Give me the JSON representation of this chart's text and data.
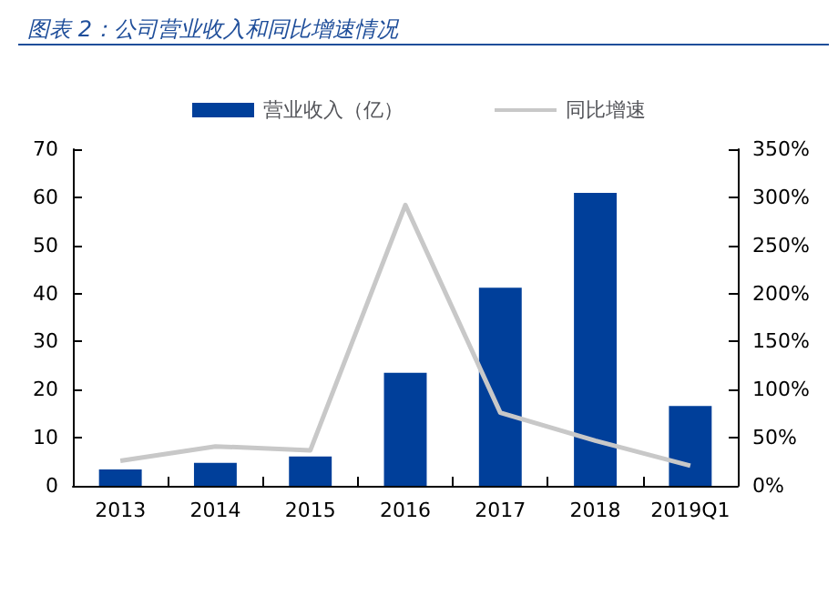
{
  "chart_data": {
    "type": "bar",
    "title": "图表 2：公司营业收入和同比增速情况",
    "categories": [
      "2013",
      "2014",
      "2015",
      "2016",
      "2017",
      "2018",
      "2019Q1"
    ],
    "series": [
      {
        "name": "营业收入（亿）",
        "color": "#003f9a",
        "values": [
          3.4,
          4.8,
          6.1,
          23.5,
          41.2,
          60.9,
          16.6
        ]
      },
      {
        "name": "同比增速",
        "type": "line",
        "axis": "y2",
        "color": "#c8c8c8",
        "values": [
          26,
          41,
          37,
          292,
          76,
          47,
          21
        ]
      }
    ],
    "ylim": [
      0,
      70
    ],
    "yticks": [
      0,
      10,
      20,
      30,
      40,
      50,
      60,
      70
    ],
    "y2lim": [
      0,
      350
    ],
    "y2ticks": [
      {
        "value": 0,
        "label": "0%"
      },
      {
        "value": 50,
        "label": "50%"
      },
      {
        "value": 100,
        "label": "100%"
      },
      {
        "value": 150,
        "label": "150%"
      },
      {
        "value": 200,
        "label": "200%"
      },
      {
        "value": 250,
        "label": "250%"
      },
      {
        "value": 300,
        "label": "300%"
      },
      {
        "value": 350,
        "label": "350%"
      }
    ],
    "legend": "top",
    "grid": false,
    "marker": "none"
  }
}
